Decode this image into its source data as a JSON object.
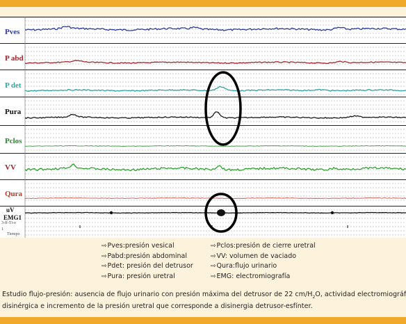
{
  "chart_data": {
    "type": "line",
    "title": "",
    "xlabel": "",
    "ylabel": "",
    "grid": true,
    "channels": [
      {
        "name": "Pves",
        "color": "#2b3a9e"
      },
      {
        "name": "P abd",
        "color": "#a2262b"
      },
      {
        "name": "P det",
        "color": "#2aa7a4"
      },
      {
        "name": "Pura",
        "color": "#1a1a1a"
      },
      {
        "name": "Pclos",
        "color": "#2a8a2a"
      },
      {
        "name": "VV",
        "color": "#2ea42e"
      },
      {
        "name": "Qura",
        "color": "#c0392b"
      },
      {
        "name": "EMG1",
        "unit": "uV",
        "color": "#111111"
      }
    ],
    "channel_label_colors": {
      "Pves": "#2b3a9e",
      "P abd": "#a2262b",
      "P det": "#2aa7a4",
      "Pura": "#111111",
      "Pclos": "#2a8a2a",
      "VV": "#a2262b",
      "Qura": "#c0392b",
      "EMG1": "#111111"
    },
    "footer_small_labels": [
      "3-ff-Ti-o",
      "1",
      "Tiempo"
    ],
    "annotations": [
      "Pdet peak with abnormal Pura rise (circled)",
      "EMG burst (circled)"
    ]
  },
  "labels": {
    "pves": "Pves",
    "pabd": "P abd",
    "pdet": "P det",
    "pura": "Pura",
    "pclos": "Pclos",
    "vv": "VV",
    "qura": "Qura",
    "uv": "uV",
    "emg": "EMG1",
    "small_top": "3-ff-Ti-o",
    "small_num": "1",
    "small_time": "Tiempo"
  },
  "legend": {
    "left": [
      "Pves:presión vesical",
      "Pabd:presión abdominal",
      "Pdet: presión del detrusor",
      "Pura: presión uretral"
    ],
    "right": [
      "Pclos:presión de cierre uretral",
      "VV: volumen de vaciado",
      "Qura:flujo urinario",
      "EMG: electromiografía"
    ]
  },
  "caption": {
    "line1_a": "Estudio flujo-presión: ausencia de flujo urinario con presión máxima del detrusor de 22 cm/H",
    "line1_sub": "2",
    "line1_b": "O, actividad electromiográfica",
    "line2": "disinérgica e incremento de la presión uretral que corresponde a disinergia detrusor-esfínter."
  },
  "colors": {
    "accent_bar": "#f0a92a",
    "background": "#fdf3dc",
    "circle": "#000000"
  }
}
